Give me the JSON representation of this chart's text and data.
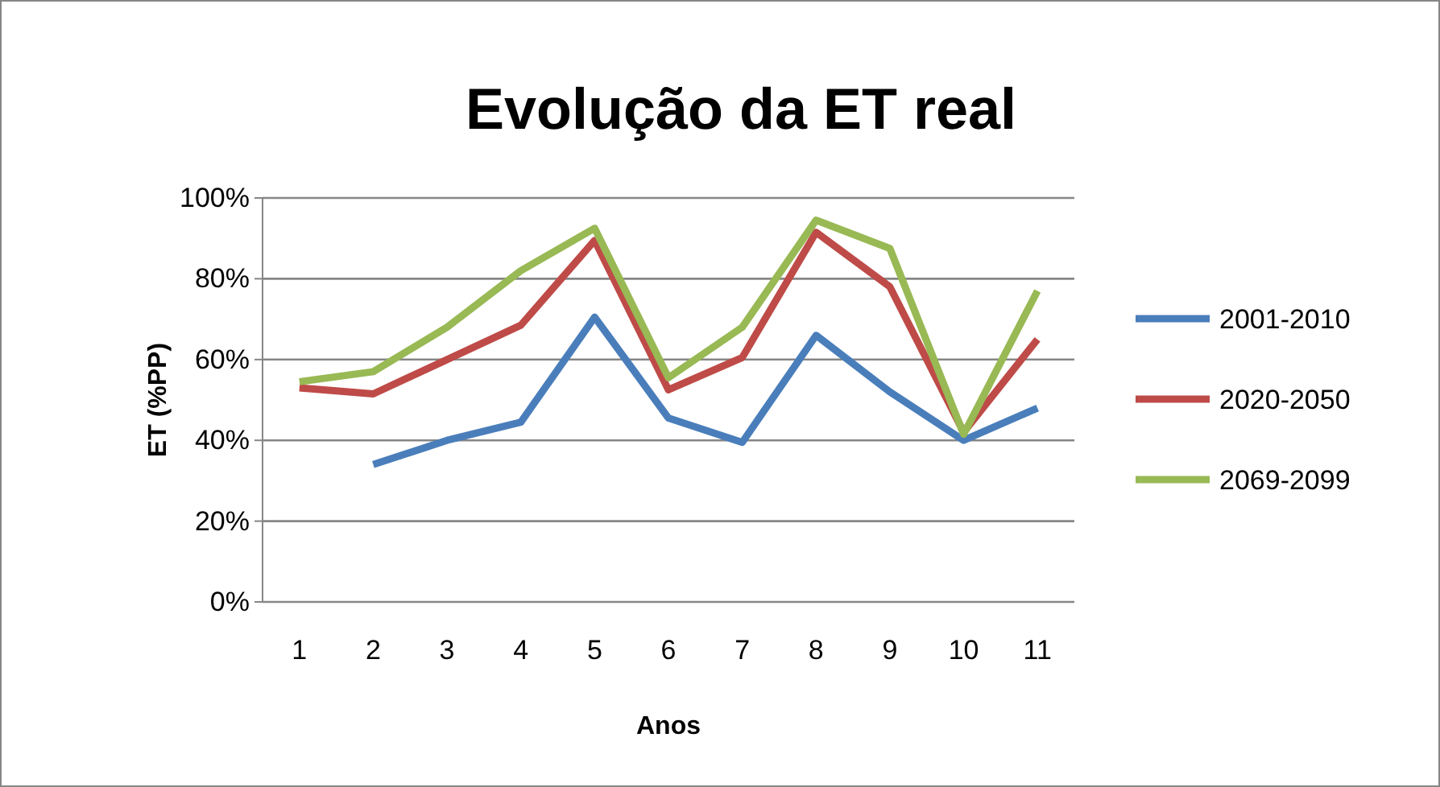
{
  "chart_data": {
    "type": "line",
    "title": "Evolução da ET real",
    "xlabel": "Anos",
    "ylabel": "ET (%PP)",
    "categories": [
      "1",
      "2",
      "3",
      "4",
      "5",
      "6",
      "7",
      "8",
      "9",
      "10",
      "11"
    ],
    "ylim": [
      0,
      100
    ],
    "yticks": [
      {
        "value": 0,
        "label": "0%"
      },
      {
        "value": 20,
        "label": "20%"
      },
      {
        "value": 40,
        "label": "40%"
      },
      {
        "value": 60,
        "label": "60%"
      },
      {
        "value": 80,
        "label": "80%"
      },
      {
        "value": 100,
        "label": "100%"
      }
    ],
    "grid": "y",
    "legend": "right",
    "marker": "none",
    "line_style": "solid",
    "series": [
      {
        "name": "2001-2010",
        "color": "#4a7ebb",
        "values": [
          null,
          34,
          40,
          44.5,
          70.5,
          45.5,
          39.5,
          66,
          52,
          40,
          48
        ]
      },
      {
        "name": "2020-2050",
        "color": "#be4b48",
        "values": [
          53,
          51.5,
          60,
          68.5,
          89.5,
          52.5,
          60.5,
          91.5,
          78,
          42,
          65
        ]
      },
      {
        "name": "2069-2099",
        "color": "#98b954",
        "values": [
          54.5,
          57,
          68,
          82,
          92.5,
          55.5,
          68,
          94.5,
          87.5,
          41.5,
          77
        ]
      }
    ]
  }
}
